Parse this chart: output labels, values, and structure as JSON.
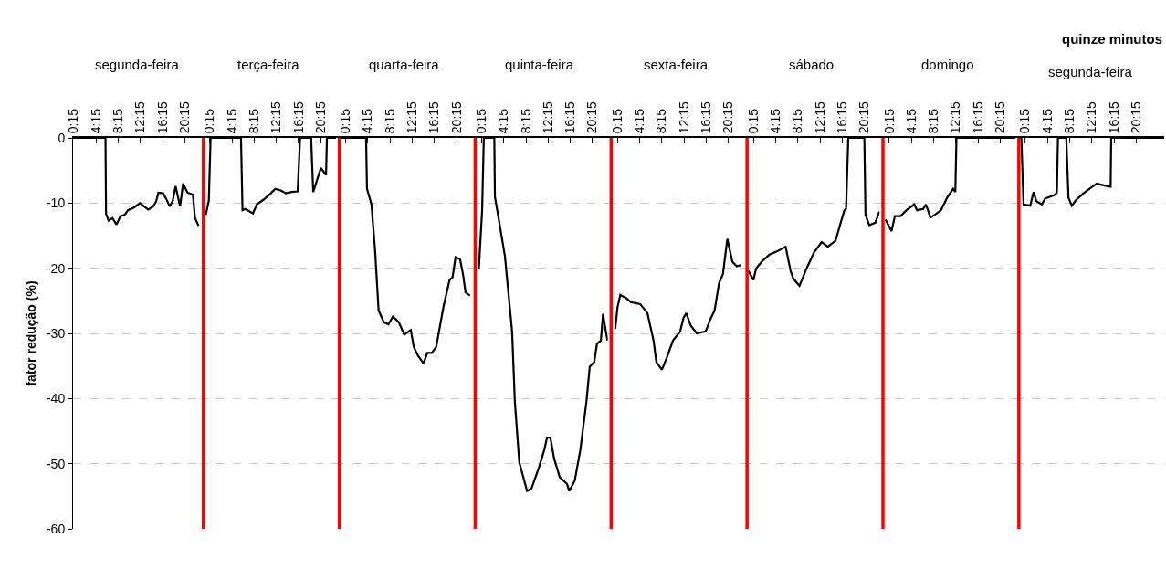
{
  "chart_data": [
    {
      "type": "line",
      "title": "segunda-feira",
      "ylabel": "fator redução (%)",
      "xlim": [
        0.1,
        23.0
      ],
      "ylim": [
        -60,
        0
      ],
      "yticks": [
        0,
        -10,
        -20,
        -30,
        -40,
        -50,
        -60
      ],
      "xticks": [
        {
          "value": 0.25,
          "label": "0:15"
        },
        {
          "value": 4.25,
          "label": "4:15"
        },
        {
          "value": 8.25,
          "label": "8:15"
        },
        {
          "value": 12.25,
          "label": "12:15"
        },
        {
          "value": 16.25,
          "label": "16:15"
        },
        {
          "value": 20.25,
          "label": "20:15"
        }
      ],
      "grid": "y",
      "line_style": "solid",
      "series": [
        {
          "color": "#000000",
          "x": [
            0.1,
            5.95,
            6.05,
            6.5,
            7.2,
            7.95,
            8.65,
            9.45,
            9.99,
            11.07,
            12.14,
            13.65,
            14.56,
            15.1,
            15.48,
            16.34,
            16.98,
            17.52,
            18.06,
            18.59,
            19.4,
            19.94,
            20.74,
            21.71,
            22.09,
            22.73
          ],
          "values": [
            0,
            0,
            -11.6,
            -12.7,
            -12.3,
            -13.3,
            -12.0,
            -11.8,
            -11.1,
            -10.7,
            -10.0,
            -11.0,
            -10.5,
            -9.7,
            -8.4,
            -8.5,
            -9.5,
            -10.5,
            -9.7,
            -7.4,
            -10.5,
            -7.0,
            -8.4,
            -8.7,
            -12.3,
            -13.5
          ]
        }
      ]
    },
    {
      "type": "line",
      "title": "terça-feira",
      "xlim": [
        -1.5,
        23.0
      ],
      "ylim": [
        -60,
        0
      ],
      "yticks": [
        0,
        -10,
        -20,
        -30,
        -40,
        -50,
        -60
      ],
      "tick_labels": "x",
      "xticks": [
        {
          "value": 0.25,
          "label": "0:15"
        },
        {
          "value": 4.25,
          "label": "4:15"
        },
        {
          "value": 8.25,
          "label": "8:15"
        },
        {
          "value": 12.25,
          "label": "12:15"
        },
        {
          "value": 16.25,
          "label": "16:15"
        },
        {
          "value": 20.25,
          "label": "20:15"
        }
      ],
      "grid": "y",
      "line_style": "solid",
      "ref_lines": [
        {
          "axis": "x",
          "value": -0.9,
          "color": "#ff0000"
        }
      ],
      "series": [
        {
          "color": "#000000",
          "x": [
            -0.46,
            0.08,
            0.4,
            5.88,
            6.15,
            6.69,
            8.03,
            8.73,
            9.91,
            11.26,
            12.06,
            13.14,
            13.95,
            15.02,
            16.1,
            16.53,
            18.52,
            18.9,
            20.29,
            21.21,
            21.37,
            23.0
          ],
          "values": [
            -11.8,
            -9.6,
            0,
            0,
            -11.1,
            -10.9,
            -11.6,
            -10.2,
            -9.5,
            -8.5,
            -7.8,
            -8.1,
            -8.5,
            -8.3,
            -8.2,
            0,
            0,
            -8.3,
            -4.6,
            -5.7,
            0,
            0
          ]
        }
      ]
    },
    {
      "type": "line",
      "title": "quarta-feira",
      "xlim": [
        -1.5,
        23.0
      ],
      "ylim": [
        -60,
        0
      ],
      "yticks": [
        0,
        -10,
        -20,
        -30,
        -40,
        -50,
        -60
      ],
      "tick_labels": "x",
      "xticks": [
        {
          "value": 0.25,
          "label": "0:15"
        },
        {
          "value": 4.25,
          "label": "4:15"
        },
        {
          "value": 8.25,
          "label": "8:15"
        },
        {
          "value": 12.25,
          "label": "12:15"
        },
        {
          "value": 16.25,
          "label": "16:15"
        },
        {
          "value": 20.25,
          "label": "20:15"
        }
      ],
      "grid": "y",
      "line_style": "solid",
      "ref_lines": [
        {
          "axis": "x",
          "value": -0.9,
          "color": "#ff0000"
        }
      ],
      "series": [
        {
          "color": "#000000",
          "x": [
            -0.9,
            3.93,
            4.09,
            4.9,
            5.54,
            6.19,
            7.15,
            7.96,
            8.77,
            9.84,
            10.81,
            11.99,
            12.53,
            13.34,
            14.3,
            14.95,
            15.76,
            16.56,
            17.37,
            17.91,
            18.98,
            19.52,
            20.06,
            20.86,
            21.4,
            21.86,
            22.66
          ],
          "values": [
            0,
            0,
            -7.8,
            -10.2,
            -17.2,
            -26.5,
            -28.3,
            -28.6,
            -27.4,
            -28.3,
            -30.2,
            -29.5,
            -32.1,
            -33.5,
            -34.6,
            -33.0,
            -33.0,
            -32.1,
            -28.3,
            -25.8,
            -21.8,
            -21.4,
            -18.3,
            -18.6,
            -20.9,
            -23.7,
            -24.2
          ]
        }
      ]
    },
    {
      "type": "line",
      "title": "quinta-feira",
      "xlim": [
        -1.5,
        23.0
      ],
      "ylim": [
        -60,
        0
      ],
      "yticks": [
        0,
        -10,
        -20,
        -30,
        -40,
        -50,
        -60
      ],
      "tick_labels": "x",
      "xticks": [
        {
          "value": 0.25,
          "label": "0:15"
        },
        {
          "value": 4.25,
          "label": "4:15"
        },
        {
          "value": 8.25,
          "label": "8:15"
        },
        {
          "value": 12.25,
          "label": "12:15"
        },
        {
          "value": 16.25,
          "label": "16:15"
        },
        {
          "value": 20.25,
          "label": "20:15"
        }
      ],
      "grid": "y",
      "line_style": "solid",
      "ref_lines": [
        {
          "axis": "x",
          "value": -0.9,
          "color": "#ff0000"
        }
      ],
      "series": [
        {
          "color": "#000000",
          "x": [
            -0.25,
            0.35,
            0.65,
            2.55,
            2.65,
            3.35,
            4.45,
            5.75,
            6.25,
            7.05,
            8.45,
            9.25,
            10.55,
            11.55,
            12.05,
            12.65,
            13.35,
            14.35,
            15.65,
            16.05,
            17.05,
            18.05,
            19.15,
            19.75,
            20.55,
            21.05,
            21.75,
            22.15,
            22.65,
            22.95
          ],
          "values": [
            -20.2,
            -11.1,
            0,
            0,
            -9.0,
            -12.5,
            -18.1,
            -29.7,
            -40.5,
            -49.8,
            -54.2,
            -53.8,
            -50.7,
            -47.9,
            -46.0,
            -46.0,
            -49.3,
            -52.1,
            -53.1,
            -54.2,
            -52.6,
            -47.9,
            -40.5,
            -35.1,
            -34.4,
            -31.6,
            -31.1,
            -27.0,
            -29.7,
            -31.1
          ]
        }
      ]
    },
    {
      "type": "line",
      "title": "sexta-feira",
      "xlim": [
        -1.5,
        23.0
      ],
      "ylim": [
        -60,
        0
      ],
      "yticks": [
        0,
        -10,
        -20,
        -30,
        -40,
        -50,
        -60
      ],
      "tick_labels": "x",
      "xticks": [
        {
          "value": 0.25,
          "label": "0:15"
        },
        {
          "value": 4.25,
          "label": "4:15"
        },
        {
          "value": 8.25,
          "label": "8:15"
        },
        {
          "value": 12.25,
          "label": "12:15"
        },
        {
          "value": 16.25,
          "label": "16:15"
        },
        {
          "value": 20.25,
          "label": "20:15"
        }
      ],
      "grid": "y",
      "line_style": "solid",
      "ref_lines": [
        {
          "axis": "x",
          "value": -0.9,
          "color": "#ff0000"
        }
      ],
      "series": [
        {
          "color": "#000000",
          "x": [
            -0.15,
            0.25,
            0.75,
            1.85,
            2.65,
            4.35,
            5.65,
            6.75,
            7.25,
            8.25,
            9.15,
            10.25,
            11.55,
            12.15,
            12.65,
            13.45,
            14.55,
            16.15,
            16.95,
            17.75,
            18.55,
            19.25,
            20.05,
            20.95,
            21.75,
            22.55
          ],
          "values": [
            -29.3,
            -26.0,
            -24.1,
            -24.6,
            -25.2,
            -25.5,
            -26.9,
            -31.1,
            -34.4,
            -35.6,
            -33.7,
            -31.1,
            -29.7,
            -27.6,
            -26.9,
            -28.8,
            -30.0,
            -29.7,
            -27.9,
            -26.5,
            -22.3,
            -20.9,
            -15.5,
            -19.0,
            -19.7,
            -19.5
          ]
        }
      ]
    },
    {
      "type": "line",
      "title": "sábado",
      "xlim": [
        -1.5,
        23.0
      ],
      "ylim": [
        -60,
        0
      ],
      "yticks": [
        0,
        -10,
        -20,
        -30,
        -40,
        -50,
        -60
      ],
      "tick_labels": "x",
      "xticks": [
        {
          "value": 0.25,
          "label": "0:15"
        },
        {
          "value": 4.25,
          "label": "4:15"
        },
        {
          "value": 8.25,
          "label": "8:15"
        },
        {
          "value": 12.25,
          "label": "12:15"
        },
        {
          "value": 16.25,
          "label": "16:15"
        },
        {
          "value": 20.25,
          "label": "20:15"
        }
      ],
      "grid": "y",
      "line_style": "solid",
      "ref_lines": [
        {
          "axis": "x",
          "value": -0.9,
          "color": "#ff0000"
        }
      ],
      "series": [
        {
          "color": "#000000",
          "x": [
            -0.65,
            0.25,
            0.75,
            1.75,
            3.15,
            4.55,
            6.05,
            6.95,
            7.45,
            8.55,
            9.85,
            11.15,
            12.55,
            13.65,
            15.05,
            15.85,
            16.65,
            16.95,
            17.35,
            20.25,
            20.45,
            21.15,
            22.25,
            22.95
          ],
          "values": [
            -20.4,
            -21.8,
            -20.0,
            -19.0,
            -17.9,
            -17.4,
            -16.7,
            -20.4,
            -21.6,
            -22.7,
            -20.0,
            -17.6,
            -16.0,
            -16.7,
            -15.8,
            -13.4,
            -11.1,
            -10.9,
            0,
            0,
            -11.8,
            -13.4,
            -13.0,
            -11.3
          ]
        }
      ]
    },
    {
      "type": "line",
      "title": "domingo",
      "xlim": [
        -1.5,
        23.0
      ],
      "ylim": [
        -60,
        0
      ],
      "yticks": [
        0,
        -10,
        -20,
        -30,
        -40,
        -50,
        -60
      ],
      "tick_labels": "x",
      "xticks": [
        {
          "value": 0.25,
          "label": "0:15"
        },
        {
          "value": 4.25,
          "label": "4:15"
        },
        {
          "value": 8.25,
          "label": "8:15"
        },
        {
          "value": 12.25,
          "label": "12:15"
        },
        {
          "value": 16.25,
          "label": "16:15"
        },
        {
          "value": 20.25,
          "label": "20:15"
        }
      ],
      "grid": "y",
      "line_style": "solid",
      "ref_lines": [
        {
          "axis": "x",
          "value": -0.9,
          "color": "#ff0000"
        }
      ],
      "series": [
        {
          "color": "#000000",
          "x": [
            -0.45,
            0.65,
            1.25,
            2.25,
            3.35,
            4.75,
            5.25,
            6.35,
            6.85,
            7.65,
            8.45,
            9.55,
            10.65,
            11.75,
            12.15,
            12.35,
            23.0
          ],
          "values": [
            -12.5,
            -14.3,
            -12.0,
            -12.0,
            -11.1,
            -10.2,
            -11.1,
            -10.9,
            -10.2,
            -12.2,
            -11.8,
            -11.1,
            -9.2,
            -7.8,
            -8.3,
            0,
            0
          ]
        }
      ]
    },
    {
      "type": "line",
      "title": "segunda-feira",
      "xlabel": "quinze minutos",
      "xlim": [
        -1.5,
        25.3
      ],
      "ylim": [
        -60,
        0
      ],
      "yticks": [
        0,
        -10,
        -20,
        -30,
        -40,
        -50,
        -60
      ],
      "tick_labels": "x",
      "xticks": [
        {
          "value": 0.25,
          "label": "0:15"
        },
        {
          "value": 4.25,
          "label": "4:15"
        },
        {
          "value": 8.25,
          "label": "8:15"
        },
        {
          "value": 12.25,
          "label": "12:15"
        },
        {
          "value": 16.25,
          "label": "16:15"
        },
        {
          "value": 20.25,
          "label": "20:15"
        }
      ],
      "grid": "y",
      "line_style": "solid",
      "ref_lines": [
        {
          "axis": "x",
          "value": -0.9,
          "color": "#ff0000"
        }
      ],
      "series": [
        {
          "color": "#000000",
          "x": [
            -0.9,
            -0.45,
            -0.05,
            1.15,
            1.75,
            2.25,
            3.25,
            3.85,
            5.45,
            5.95,
            6.15,
            7.65,
            8.05,
            8.65,
            9.45,
            10.75,
            11.85,
            13.15,
            14.55,
            15.65,
            15.75,
            25.3
          ],
          "values": [
            0,
            0,
            -10.2,
            -10.4,
            -8.3,
            -9.7,
            -10.2,
            -9.3,
            -8.8,
            -8.4,
            0,
            0,
            -9.2,
            -10.4,
            -9.5,
            -8.5,
            -7.8,
            -7.0,
            -7.3,
            -7.5,
            0,
            0
          ]
        }
      ]
    }
  ]
}
